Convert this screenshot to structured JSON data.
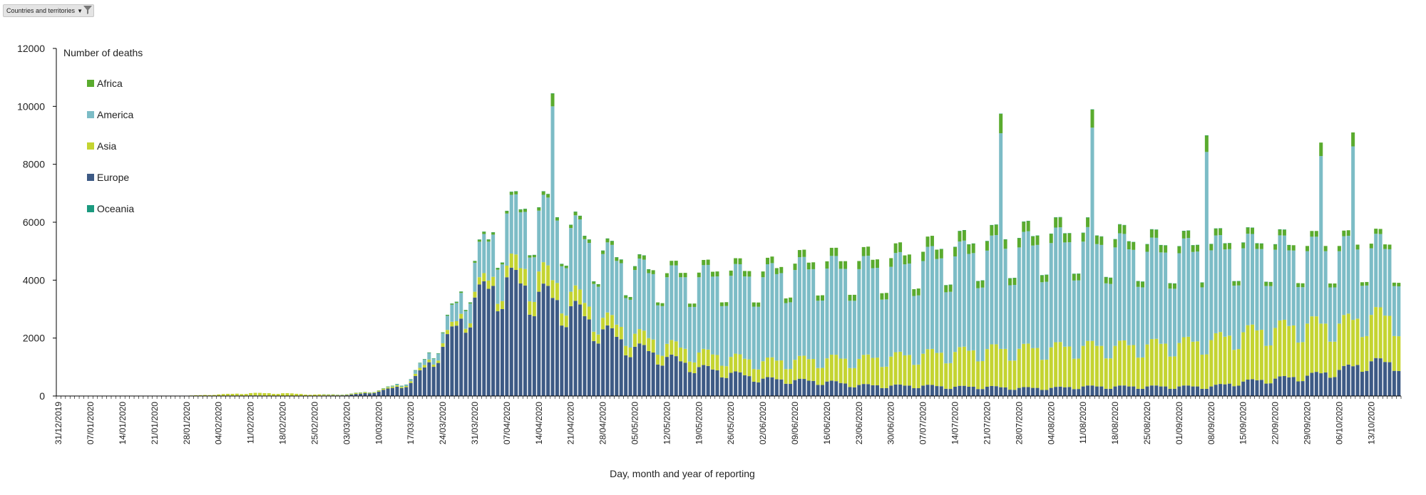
{
  "filter": {
    "label": "Countries and territories",
    "arrow_icon": "chevron-down-icon",
    "filter_icon": "funnel-icon"
  },
  "chart_data": {
    "type": "bar",
    "stacked": true,
    "title": "",
    "xlabel": "Day, month and year of reporting",
    "ylabel": "Number of deaths",
    "ylim": [
      0,
      12000
    ],
    "yticks": [
      0,
      2000,
      4000,
      6000,
      8000,
      10000,
      12000
    ],
    "grid": false,
    "legend_placement": "top-left",
    "x_start": "31/12/2019",
    "x_end": "19/10/2020",
    "x_tick_labels": [
      "31/12/2019",
      "07/01/2020",
      "14/01/2020",
      "21/01/2020",
      "28/01/2020",
      "04/02/2020",
      "11/02/2020",
      "18/02/2020",
      "25/02/2020",
      "03/03/2020",
      "10/03/2020",
      "17/03/2020",
      "24/03/2020",
      "31/03/2020",
      "07/04/2020",
      "14/04/2020",
      "21/04/2020",
      "28/04/2020",
      "05/05/2020",
      "12/05/2020",
      "19/05/2020",
      "26/05/2020",
      "02/06/2020",
      "09/06/2020",
      "16/06/2020",
      "23/06/2020",
      "30/06/2020",
      "07/07/2020",
      "14/07/2020",
      "21/07/2020",
      "28/07/2020",
      "04/08/2020",
      "11/08/2020",
      "18/08/2020",
      "25/08/2020",
      "01/09/2020",
      "08/09/2020",
      "15/09/2020",
      "22/09/2020",
      "29/09/2020",
      "06/10/2020",
      "13/10/2020"
    ],
    "series": [
      {
        "name": "Africa",
        "color": "#5aab2e"
      },
      {
        "name": "America",
        "color": "#7cbcc6"
      },
      {
        "name": "Asia",
        "color": "#c4d431"
      },
      {
        "name": "Europe",
        "color": "#3d5a85"
      },
      {
        "name": "Oceania",
        "color": "#1b9a7f"
      }
    ],
    "weekly_profile": {
      "series_names": [
        "Europe",
        "Asia",
        "America",
        "Africa"
      ],
      "dates": [
        "31/12/2019",
        "07/01/2020",
        "14/01/2020",
        "21/01/2020",
        "28/01/2020",
        "04/02/2020",
        "11/02/2020",
        "18/02/2020",
        "25/02/2020",
        "03/03/2020",
        "10/03/2020",
        "17/03/2020",
        "24/03/2020",
        "31/03/2020",
        "07/04/2020",
        "14/04/2020",
        "21/04/2020",
        "28/04/2020",
        "05/05/2020",
        "12/05/2020",
        "19/05/2020",
        "26/05/2020",
        "02/06/2020",
        "09/06/2020",
        "16/06/2020",
        "23/06/2020",
        "30/06/2020",
        "07/07/2020",
        "14/07/2020",
        "21/07/2020",
        "28/07/2020",
        "04/08/2020",
        "11/08/2020",
        "18/08/2020",
        "25/08/2020",
        "01/09/2020",
        "08/09/2020",
        "15/09/2020",
        "22/09/2020",
        "29/09/2020",
        "06/10/2020",
        "13/10/2020",
        "19/10/2020"
      ],
      "Europe": [
        0,
        0,
        0,
        0,
        2,
        10,
        20,
        5,
        10,
        30,
        150,
        450,
        1700,
        3400,
        4100,
        3600,
        3100,
        2300,
        1700,
        1350,
        1000,
        800,
        600,
        550,
        500,
        380,
        360,
        360,
        320,
        320,
        280,
        280,
        330,
        330,
        330,
        330,
        330,
        500,
        600,
        700,
        900,
        1200,
        1150
      ],
      "Asia": [
        0,
        0,
        0,
        0,
        8,
        45,
        80,
        90,
        40,
        30,
        30,
        60,
        120,
        200,
        400,
        700,
        500,
        400,
        450,
        450,
        500,
        550,
        600,
        700,
        800,
        900,
        1000,
        1100,
        1200,
        1300,
        1350,
        1400,
        1400,
        1400,
        1450,
        1500,
        1600,
        1700,
        1750,
        1800,
        1600,
        1600,
        1600
      ],
      "America": [
        0,
        0,
        0,
        0,
        0,
        0,
        0,
        0,
        0,
        2,
        10,
        60,
        350,
        1000,
        1800,
        2100,
        2200,
        2200,
        2200,
        2300,
        2600,
        2800,
        2900,
        3100,
        3100,
        3100,
        3100,
        3200,
        3300,
        3400,
        3500,
        3600,
        3600,
        3400,
        3200,
        3100,
        3100,
        2900,
        2700,
        2500,
        2500,
        2300,
        2300
      ],
      "Africa": [
        0,
        0,
        0,
        0,
        0,
        0,
        0,
        0,
        0,
        0,
        2,
        8,
        25,
        60,
        90,
        110,
        110,
        120,
        130,
        140,
        160,
        180,
        200,
        220,
        250,
        280,
        300,
        320,
        330,
        330,
        320,
        320,
        300,
        280,
        260,
        240,
        220,
        200,
        190,
        180,
        180,
        160,
        160
      ],
      "Oceania": [
        0,
        0,
        0,
        0,
        0,
        0,
        0,
        0,
        0,
        0,
        0,
        1,
        2,
        5,
        5,
        4,
        3,
        2,
        1,
        0,
        0,
        0,
        0,
        0,
        0,
        0,
        0,
        0,
        1,
        3,
        6,
        8,
        10,
        8,
        6,
        4,
        2,
        1,
        1,
        0,
        0,
        0,
        0
      ]
    },
    "daily_spikes": [
      {
        "date": "17/04/2020",
        "total": 10450
      },
      {
        "date": "24/07/2020",
        "total": 9750
      },
      {
        "date": "13/08/2020",
        "total": 9900
      },
      {
        "date": "07/09/2020",
        "total": 9000
      },
      {
        "date": "02/10/2020",
        "total": 8750
      },
      {
        "date": "09/10/2020",
        "total": 9100
      }
    ]
  }
}
